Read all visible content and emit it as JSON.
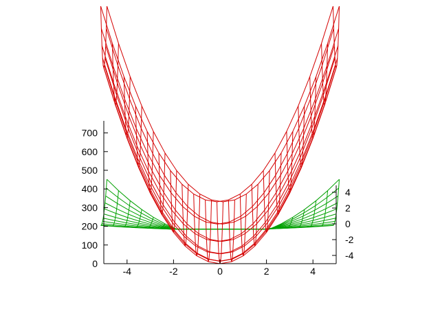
{
  "chart_data": {
    "type": "surface3d",
    "title": "",
    "x": {
      "range": [
        -5,
        5
      ],
      "tick_labels": [
        "-4",
        "-2",
        "0",
        "2",
        "4"
      ],
      "ticks": [
        -4,
        -2,
        0,
        2,
        4
      ]
    },
    "y": {
      "range": [
        -5,
        5
      ],
      "tick_labels": [
        "4",
        "2",
        "0",
        "-2",
        "-4"
      ],
      "ticks": [
        4,
        2,
        0,
        -2,
        -4
      ]
    },
    "z": {
      "range": [
        0,
        800
      ],
      "tick_labels": [
        "0",
        "100",
        "200",
        "300",
        "400",
        "500",
        "600",
        "700"
      ],
      "ticks": [
        0,
        100,
        200,
        300,
        400,
        500,
        600,
        700
      ]
    },
    "grid": false,
    "legend": "none",
    "surfaces": [
      {
        "formula": "x^2 * y^2 ... red mesh (approx. z = 16 * (x^2 + y^2)) ",
        "color": "#d40000",
        "grid_x": 21,
        "grid_y": 11
      },
      {
        "formula": "green mesh (approx. z = 185 + 3*x^2*y ) ",
        "color": "#00a000",
        "grid_x": 21,
        "grid_y": 11
      }
    ]
  }
}
